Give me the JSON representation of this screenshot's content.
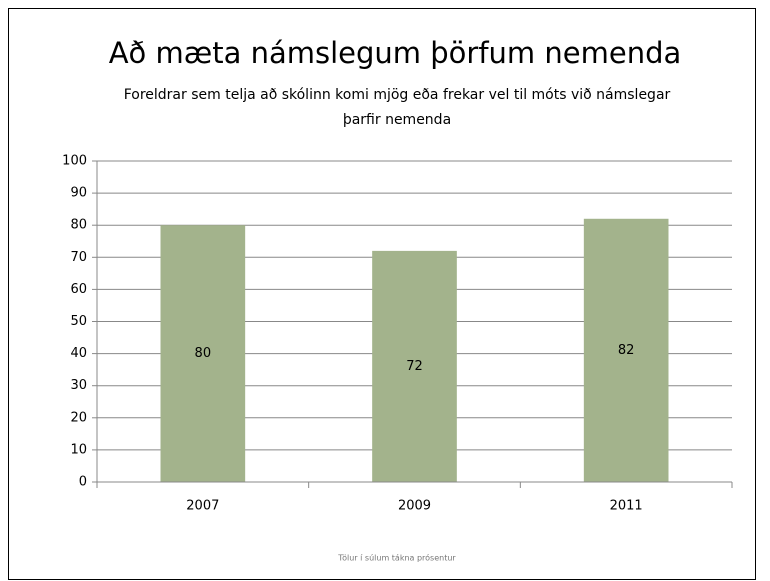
{
  "chart_data": {
    "type": "bar",
    "title": "Að mæta námslegum þörfum nemenda",
    "subtitle": [
      "Foreldrar sem telja að skólinn komi mjög eða frekar vel til móts við námslegar",
      "þarfir nemenda"
    ],
    "categories": [
      "2007",
      "2009",
      "2011"
    ],
    "values": [
      80,
      72,
      82
    ],
    "color": "#a3b38c",
    "ylim": [
      0,
      100
    ],
    "yticks": [
      0,
      10,
      20,
      30,
      40,
      50,
      60,
      70,
      80,
      90,
      100
    ],
    "grid": true,
    "footnote": "Tölur í súlum tákna prósentur"
  }
}
